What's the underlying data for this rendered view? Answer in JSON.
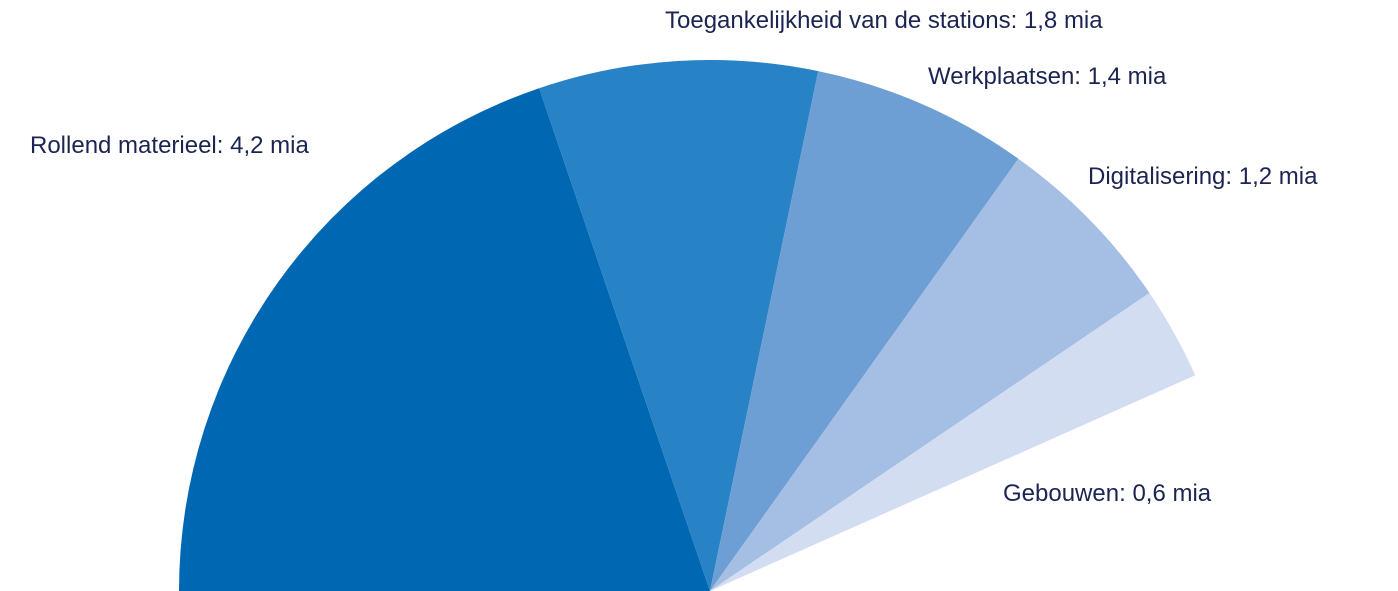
{
  "chart_data": {
    "type": "pie",
    "categories": [
      "Rollend materieel",
      "Toegankelijkheid van de stations",
      "Werkplaatsen",
      "Digitalisering",
      "Gebouwen"
    ],
    "values": [
      4.2,
      1.8,
      1.4,
      1.2,
      0.6
    ],
    "value_labels": [
      "4,2 mia",
      "1,8 mia",
      "1,4 mia",
      "1,2 mia",
      "0,6 mia"
    ],
    "colors": [
      "#0068b3",
      "#2882c6",
      "#6e9fd4",
      "#a4bee4",
      "#d3ddf2"
    ]
  }
}
